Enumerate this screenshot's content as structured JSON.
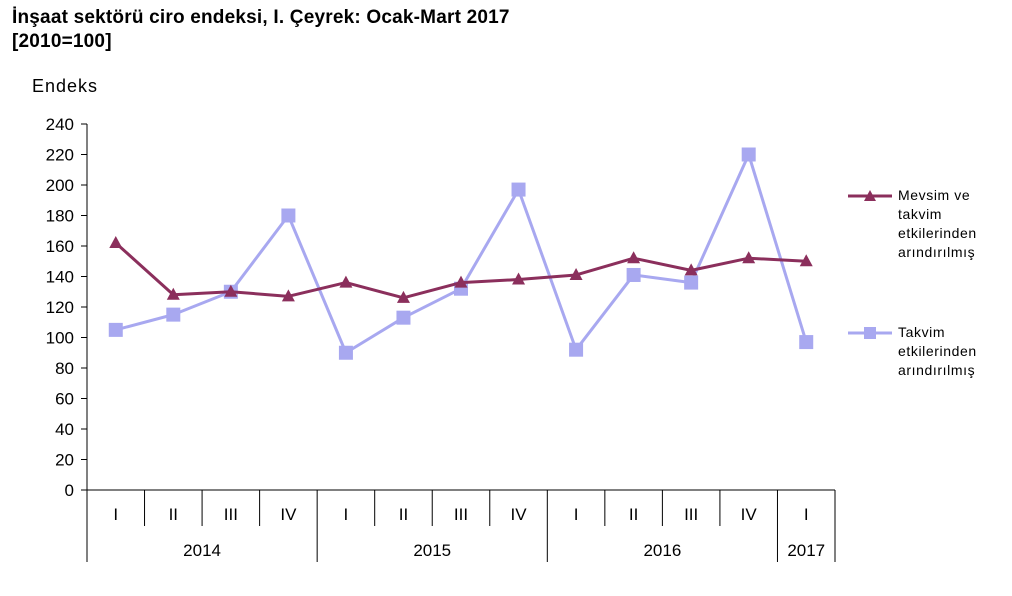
{
  "title": {
    "line1": "İnşaat sektörü  ciro endeksi, I. Çeyrek: Ocak-Mart  2017",
    "line2": "[2010=100]"
  },
  "chart_data": {
    "type": "line",
    "ylabel": "Endeks",
    "ylim": [
      0,
      240
    ],
    "yticks": [
      0,
      20,
      40,
      60,
      80,
      100,
      120,
      140,
      160,
      180,
      200,
      220,
      240
    ],
    "categories": [
      "I",
      "II",
      "III",
      "IV",
      "I",
      "II",
      "III",
      "IV",
      "I",
      "II",
      "III",
      "IV",
      "I"
    ],
    "years": [
      {
        "label": "2014",
        "span": 4
      },
      {
        "label": "2015",
        "span": 4
      },
      {
        "label": "2016",
        "span": 4
      },
      {
        "label": "2017",
        "span": 1
      }
    ],
    "grid": false,
    "legend_position": "right",
    "series": [
      {
        "name": "Mevsim ve takvim etkilerinden arındırılmış",
        "legend_lines": [
          "Mevsim ve",
          "takvim",
          "etkilerinden",
          "arındırılmış"
        ],
        "color": "#8B2F5C",
        "marker": "triangle",
        "values": [
          162,
          128,
          130,
          127,
          136,
          126,
          136,
          138,
          141,
          152,
          144,
          152,
          150
        ]
      },
      {
        "name": "Takvim etkilerinden arındırılmış",
        "legend_lines": [
          "Takvim",
          "etkilerinden",
          "arındırılmış"
        ],
        "color": "#A8A8F0",
        "marker": "square",
        "values": [
          105,
          115,
          130,
          180,
          90,
          113,
          132,
          197,
          92,
          141,
          136,
          220,
          97
        ]
      }
    ]
  }
}
